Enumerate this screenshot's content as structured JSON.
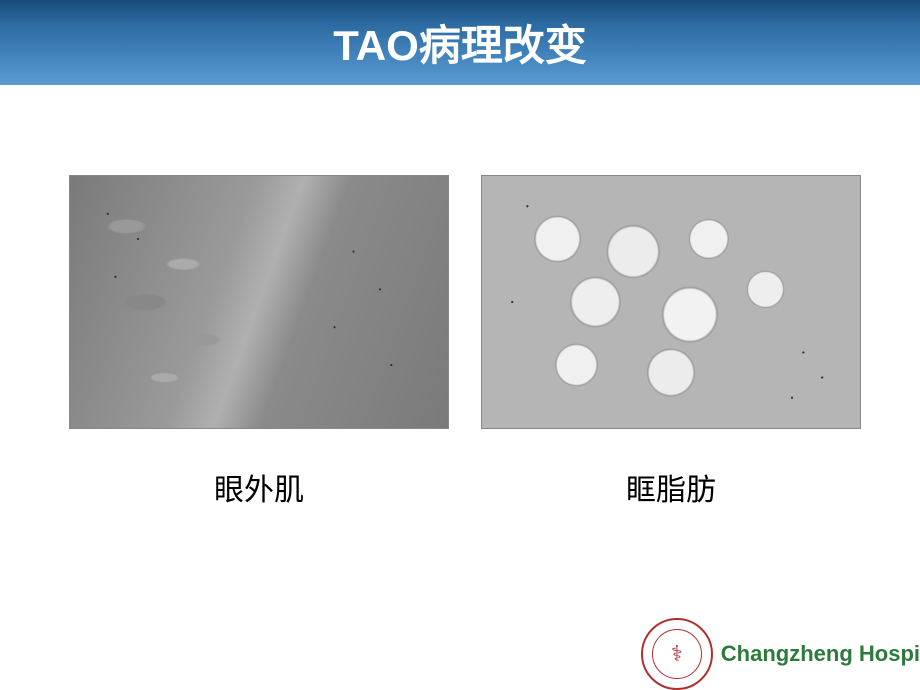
{
  "slide": {
    "title": "TAO病理改变",
    "title_bar": {
      "gradient_top": "#1a4d7a",
      "gradient_mid": "#2d6ca3",
      "gradient_bottom": "#5a9bd4",
      "text_color": "#ffffff",
      "font_size": 42
    },
    "figures": [
      {
        "caption": "眼外肌",
        "image_type": "histology-muscle",
        "border_color": "#888888"
      },
      {
        "caption": "眶脂肪",
        "image_type": "histology-fat",
        "border_color": "#888888"
      }
    ],
    "caption_style": {
      "font_size": 30,
      "color": "#000000"
    },
    "footer": {
      "logo_border_color": "#b03030",
      "logo_symbol": "⚕",
      "hospital_name": "Changzheng Hospi",
      "hospital_name_color": "#2d7a3d"
    },
    "background_color": "#ffffff"
  }
}
